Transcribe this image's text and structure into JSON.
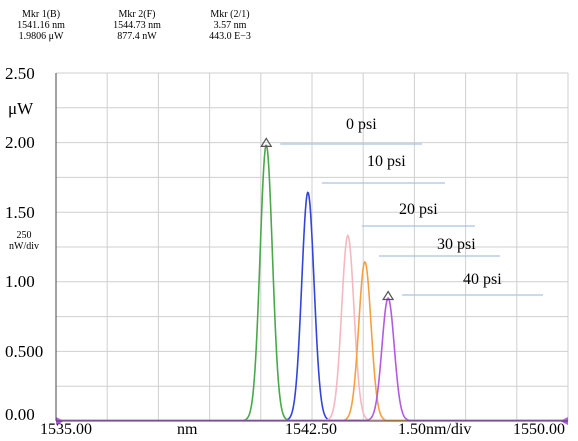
{
  "markers": [
    {
      "title": "Mkr 1(B)",
      "line1": "1541.16 nm",
      "line2": "1.9806 μW"
    },
    {
      "title": "Mkr 2(F)",
      "line1": "1544.73 nm",
      "line2": "877.4 nW"
    },
    {
      "title": "Mkr (2/1)",
      "line1": "3.57 nm",
      "line2": "443.0 E−3"
    }
  ],
  "chart_data": {
    "type": "line",
    "ylabel": "μW",
    "scale_label": "250\nnW/div",
    "x_unit": "nm",
    "x_div_label": "1.50nm/div",
    "xlim": [
      1535.0,
      1550.0
    ],
    "ylim": [
      0.0,
      2.5
    ],
    "x_tick_labels": [
      "1535.00",
      "nm",
      "1542.50",
      "1.50nm/div",
      "1550.00"
    ],
    "y_tick_labels": [
      "2.50",
      "2.00",
      "1.50",
      "1.00",
      "0.500",
      "0.00"
    ],
    "grid": true,
    "series": [
      {
        "name": "0 psi",
        "peak_x": 1541.16,
        "peak_y": 1.98,
        "width": 0.18,
        "color": "#4aa84a"
      },
      {
        "name": "10 psi",
        "peak_x": 1542.38,
        "peak_y": 1.64,
        "width": 0.18,
        "color": "#3344dd"
      },
      {
        "name": "20 psi",
        "peak_x": 1543.55,
        "peak_y": 1.33,
        "width": 0.18,
        "color": "#f5b8c0"
      },
      {
        "name": "30 psi",
        "peak_x": 1544.05,
        "peak_y": 1.14,
        "width": 0.18,
        "color": "#f5a040"
      },
      {
        "name": "40 psi",
        "peak_x": 1544.73,
        "peak_y": 0.88,
        "width": 0.18,
        "color": "#b25be0"
      }
    ]
  }
}
